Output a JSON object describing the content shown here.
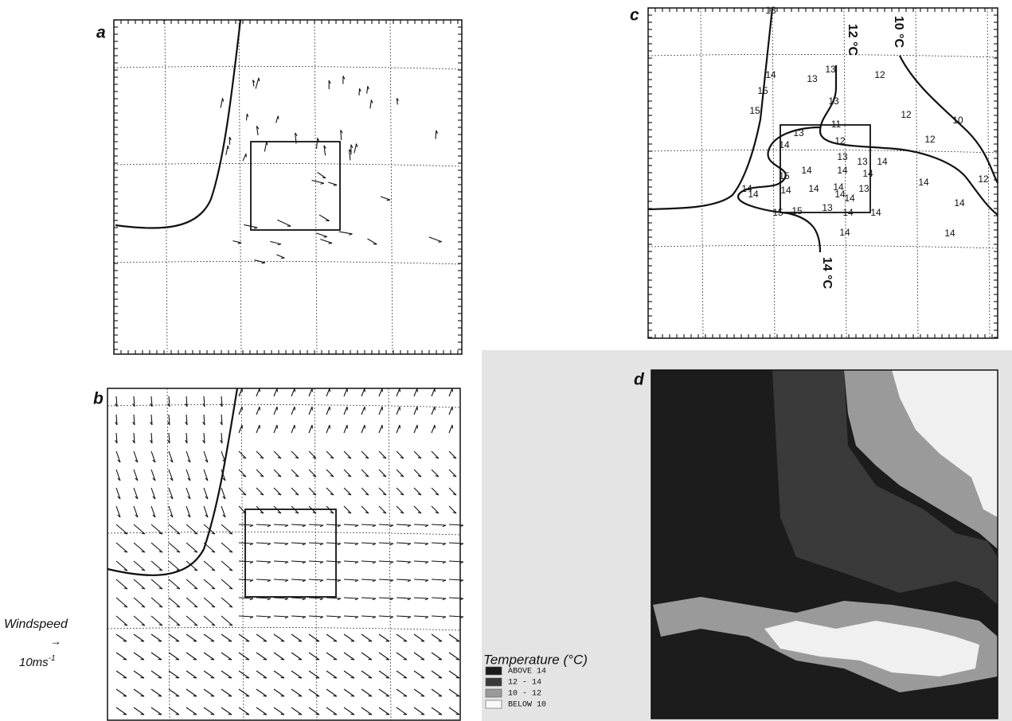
{
  "panel_labels": [
    "a",
    "b",
    "c",
    "d"
  ],
  "wind_legend": {
    "title": "Windspeed",
    "arrow": "→",
    "unit": "10ms",
    "unit_exponent": "-1"
  },
  "panel_c": {
    "contour_labels": [
      "12 °C",
      "10 °C",
      "14 °C"
    ],
    "values": [
      13,
      14,
      15,
      15,
      13,
      13,
      12,
      13,
      11,
      12,
      10,
      13,
      12,
      12,
      14,
      13,
      13,
      14,
      15,
      14,
      14,
      14,
      14,
      12,
      14,
      14,
      14,
      14,
      14,
      14,
      13,
      14,
      14,
      15,
      15,
      13,
      14,
      14,
      14,
      14
    ]
  },
  "temperature_legend": {
    "title": "Temperature (°C)",
    "items": [
      "ABOVE  14",
      "12 - 14",
      "10 - 12",
      "BELOW  10"
    ]
  }
}
